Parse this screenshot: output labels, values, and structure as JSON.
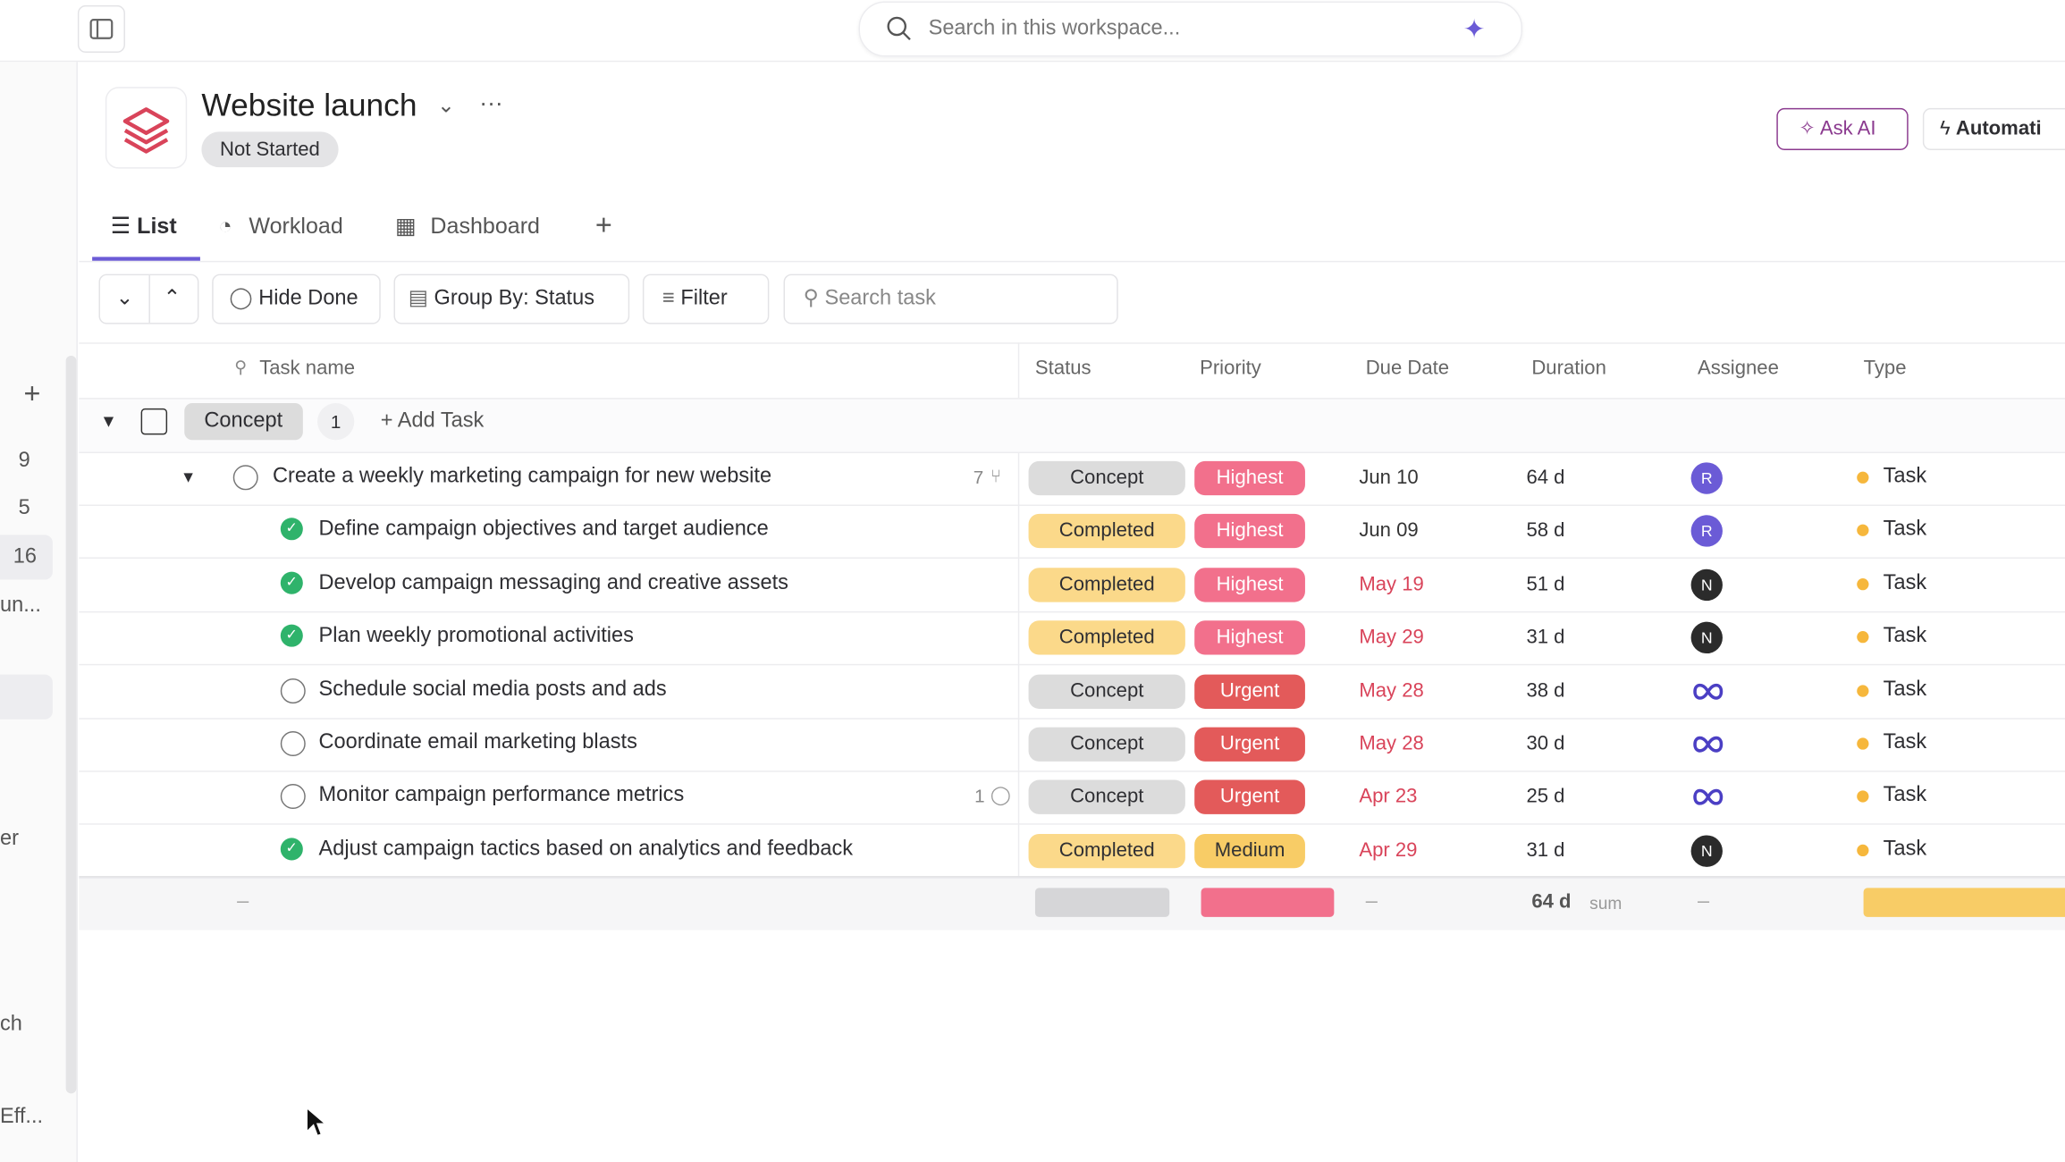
{
  "search_placeholder": "Search in this workspace...",
  "project": {
    "title": "Website launch",
    "status": "Not Started"
  },
  "actions": [
    "Ask AI",
    "Automati"
  ],
  "tabs": [
    "List",
    "Workload",
    "Dashboard"
  ],
  "toolbar": {
    "hide_done": "Hide Done",
    "group_by": "Group By: Status",
    "filter": "Filter",
    "search_task": "Search task"
  },
  "columns": [
    "Task name",
    "Status",
    "Priority",
    "Due Date",
    "Duration",
    "Assignee",
    "Type"
  ],
  "status_colors": {
    "Concept": "#dcdcdc",
    "Completed": "#fbd98a"
  },
  "priority_colors": {
    "Highest": "#f2708c",
    "Urgent": "#e35a5a",
    "Medium": "#f8cc66"
  },
  "group": {
    "name": "Concept",
    "count": 1,
    "add_task": "+ Add Task"
  },
  "tasks": [
    {
      "name": "Create a weekly marketing campaign for new website",
      "subtask_count": 7,
      "status": "Concept",
      "priority": "Highest",
      "due": "Jun 10",
      "duration": "64 d",
      "assignee": "R",
      "assignee_color": "#6b5bd6",
      "type": "Task",
      "done": false,
      "overdue": false,
      "subtasks": [
        {
          "name": "Define campaign objectives and target audience",
          "status": "Completed",
          "priority": "Highest",
          "due": "Jun 09",
          "duration": "58 d",
          "assignee": "R",
          "assignee_color": "#6b5bd6",
          "type": "Task",
          "done": true,
          "overdue": false
        },
        {
          "name": "Develop campaign messaging and creative assets",
          "status": "Completed",
          "priority": "Highest",
          "due": "May 19",
          "duration": "51 d",
          "assignee": "N",
          "assignee_color": "#2b2b2b",
          "type": "Task",
          "done": true,
          "overdue": true
        },
        {
          "name": "Plan weekly promotional activities",
          "status": "Completed",
          "priority": "Highest",
          "due": "May 29",
          "duration": "31 d",
          "assignee": "N",
          "assignee_color": "#2b2b2b",
          "type": "Task",
          "done": true,
          "overdue": true
        },
        {
          "name": "Schedule social media posts and ads",
          "status": "Concept",
          "priority": "Urgent",
          "due": "May 28",
          "duration": "38 d",
          "type": "Task",
          "done": false,
          "overdue": true
        },
        {
          "name": "Coordinate email marketing blasts",
          "status": "Concept",
          "priority": "Urgent",
          "due": "May 28",
          "duration": "30 d",
          "type": "Task",
          "done": false,
          "overdue": true
        },
        {
          "name": "Monitor campaign performance metrics",
          "comment_count": 1,
          "status": "Concept",
          "priority": "Urgent",
          "due": "Apr 23",
          "duration": "25 d",
          "type": "Task",
          "done": false,
          "overdue": true
        },
        {
          "name": "Adjust campaign tactics based on analytics and feedback",
          "status": "Completed",
          "priority": "Medium",
          "due": "Apr 29",
          "duration": "31 d",
          "assignee": "N",
          "assignee_color": "#2b2b2b",
          "type": "Task",
          "done": true,
          "overdue": true
        }
      ]
    }
  ],
  "summary": {
    "duration": "64 d",
    "label": "sum",
    "dash": "–"
  },
  "sidebar": [
    "9",
    "5",
    "16",
    "un...",
    "er",
    "ch",
    "Eff..."
  ]
}
